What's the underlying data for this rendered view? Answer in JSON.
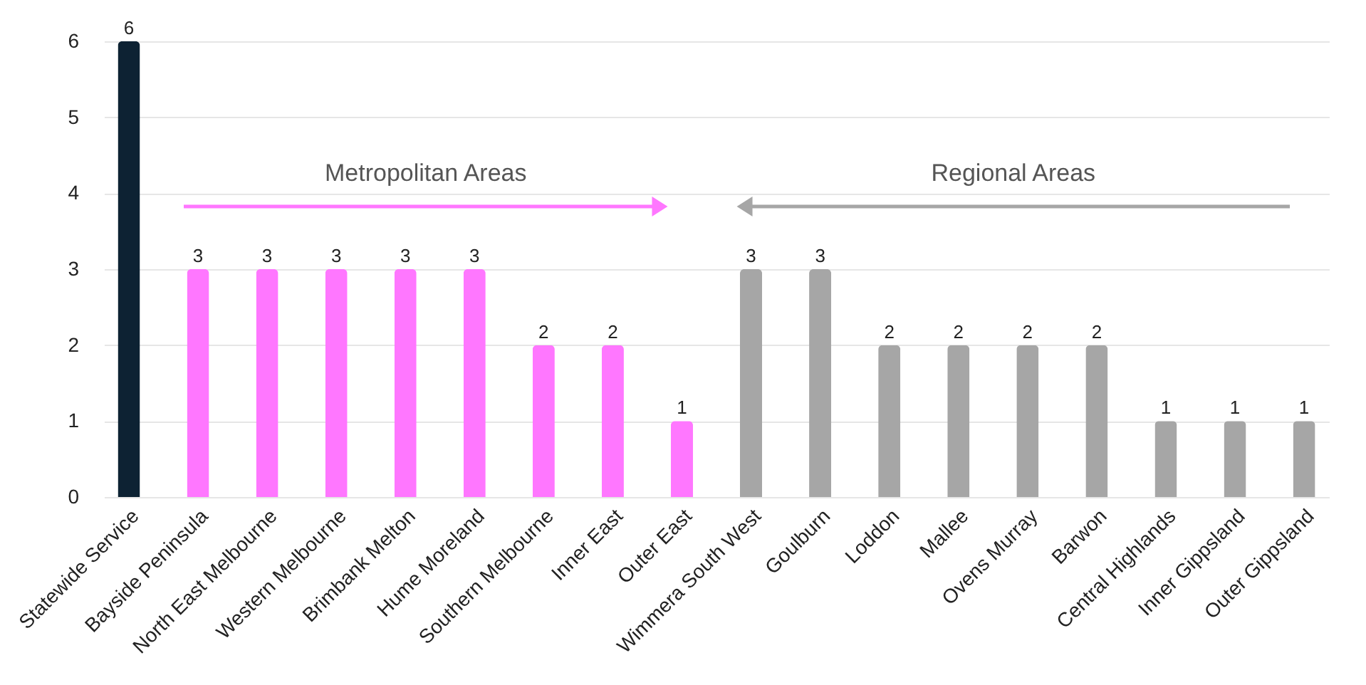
{
  "chart_data": {
    "type": "bar",
    "categories": [
      "Statewide Service",
      "Bayside Peninsula",
      "North East Melbourne",
      "Western Melbourne",
      "Brimbank Melton",
      "Hume Moreland",
      "Southern Melbourne",
      "Inner East",
      "Outer East",
      "Wimmera South West",
      "Goulburn",
      "Loddon",
      "Mallee",
      "Ovens Murray",
      "Barwon",
      "Central Highlands",
      "Inner Gippsland",
      "Outer Gippsland"
    ],
    "values": [
      6,
      3,
      3,
      3,
      3,
      3,
      2,
      2,
      1,
      3,
      3,
      2,
      2,
      2,
      2,
      1,
      1,
      1
    ],
    "colors": [
      "#0d2233",
      "#ff77ff",
      "#ff77ff",
      "#ff77ff",
      "#ff77ff",
      "#ff77ff",
      "#ff77ff",
      "#ff77ff",
      "#ff77ff",
      "#a6a6a6",
      "#a6a6a6",
      "#a6a6a6",
      "#a6a6a6",
      "#a6a6a6",
      "#a6a6a6",
      "#a6a6a6",
      "#a6a6a6",
      "#a6a6a6"
    ],
    "ylim": [
      0,
      6
    ],
    "yticks": [
      0,
      1,
      2,
      3,
      4,
      5,
      6
    ],
    "grid": "y",
    "data_labels": true,
    "annotations": [
      "Metropolitan Areas",
      "Regional Areas"
    ]
  }
}
